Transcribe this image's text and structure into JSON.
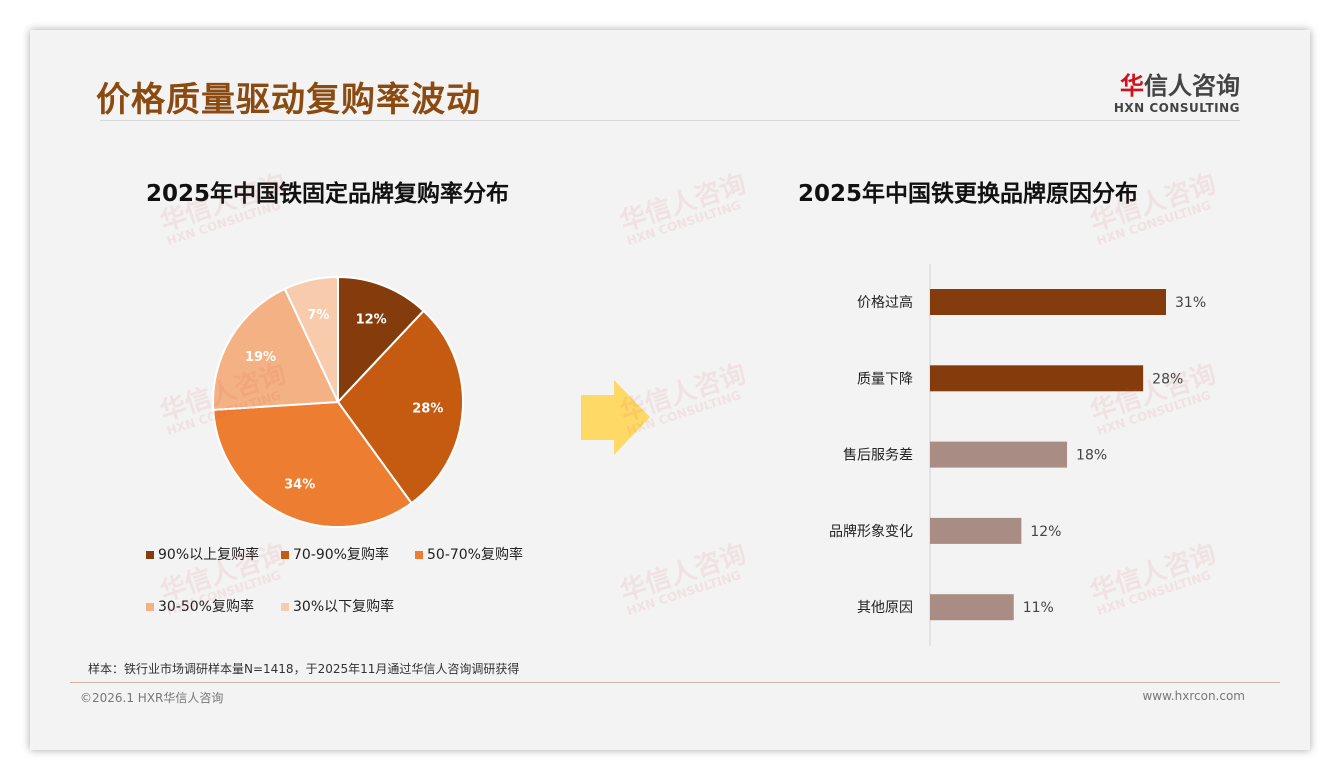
{
  "header": {
    "title": "价格质量驱动复购率波动",
    "logo_cn_red": "华",
    "logo_cn_rest": "信人咨询",
    "logo_en": "HXN CONSULTING"
  },
  "chart_data": [
    {
      "type": "pie",
      "title": "2025年中国铁固定品牌复购率分布",
      "slices": [
        {
          "label": "90%以上复购率",
          "value": 12,
          "display": "12%",
          "color": "#843c0c"
        },
        {
          "label": "70-90%复购率",
          "value": 28,
          "display": "28%",
          "color": "#c55a11"
        },
        {
          "label": "50-70%复购率",
          "value": 34,
          "display": "34%",
          "color": "#ed7d31"
        },
        {
          "label": "30-50%复购率",
          "value": 19,
          "display": "19%",
          "color": "#f4b183"
        },
        {
          "label": "30%以下复购率",
          "value": 7,
          "display": "7%",
          "color": "#f8cbad"
        }
      ],
      "legend": "bottom"
    },
    {
      "type": "bar",
      "orientation": "horizontal",
      "title": "2025年中国铁更换品牌原因分布",
      "categories": [
        "价格过高",
        "质量下降",
        "售后服务差",
        "品牌形象变化",
        "其他原因"
      ],
      "values": [
        31,
        28,
        18,
        12,
        11
      ],
      "labels": [
        "31%",
        "28%",
        "18%",
        "12%",
        "11%"
      ],
      "colors": [
        "#843c0c",
        "#843c0c",
        "#a98c84",
        "#a98c84",
        "#a98c84"
      ],
      "xlim": [
        0,
        31
      ]
    }
  ],
  "footer": {
    "note": "样本：铁行业市场调研样本量N=1418，于2025年11月通过华信人咨询调研获得",
    "copyright": "©2026.1 HXR华信人咨询",
    "website": "www.hxrcon.com"
  },
  "colors": {
    "title": "#8a4a10",
    "arrow": "#ffd966"
  }
}
